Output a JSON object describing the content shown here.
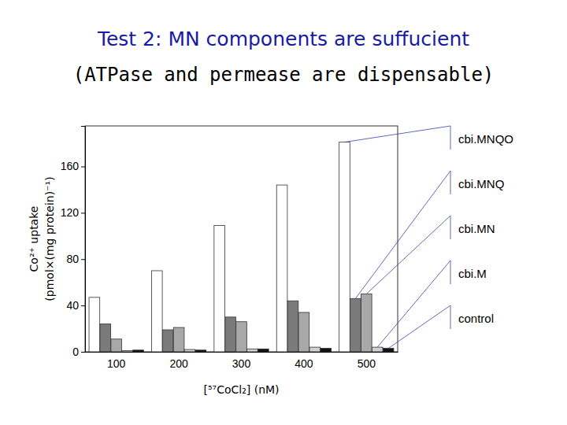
{
  "chart_data": {
    "type": "bar",
    "title": "Test 2: MN components are suffucient",
    "subtitle": "(ATPase and permease are dispensable)",
    "x_label": "[⁵⁷CoCl₂] (nM)",
    "y_label": [
      "Co²⁺ uptake",
      "(pmol×(mg protein)⁻¹)"
    ],
    "categories": [
      "100",
      "200",
      "300",
      "400",
      "500"
    ],
    "series": [
      {
        "name": "cbi.MNQO",
        "color": "#ffffff",
        "values": [
          47,
          70,
          109,
          144,
          181
        ]
      },
      {
        "name": "cbi.MNQ",
        "color": "#7a7a7a",
        "values": [
          24,
          19,
          30,
          44,
          46
        ]
      },
      {
        "name": "cbi.MN",
        "color": "#a8a8a8",
        "values": [
          11,
          21,
          26,
          34,
          50
        ]
      },
      {
        "name": "cbi.M",
        "color": "#d0d0d0",
        "values": [
          1,
          2,
          2.5,
          4,
          4
        ]
      },
      {
        "name": "control",
        "color": "#111111",
        "values": [
          1.5,
          1.5,
          2.5,
          3,
          3
        ]
      }
    ],
    "ylim": [
      0,
      195
    ],
    "yticks": [
      0,
      40,
      80,
      120,
      160
    ],
    "legend": "right"
  }
}
